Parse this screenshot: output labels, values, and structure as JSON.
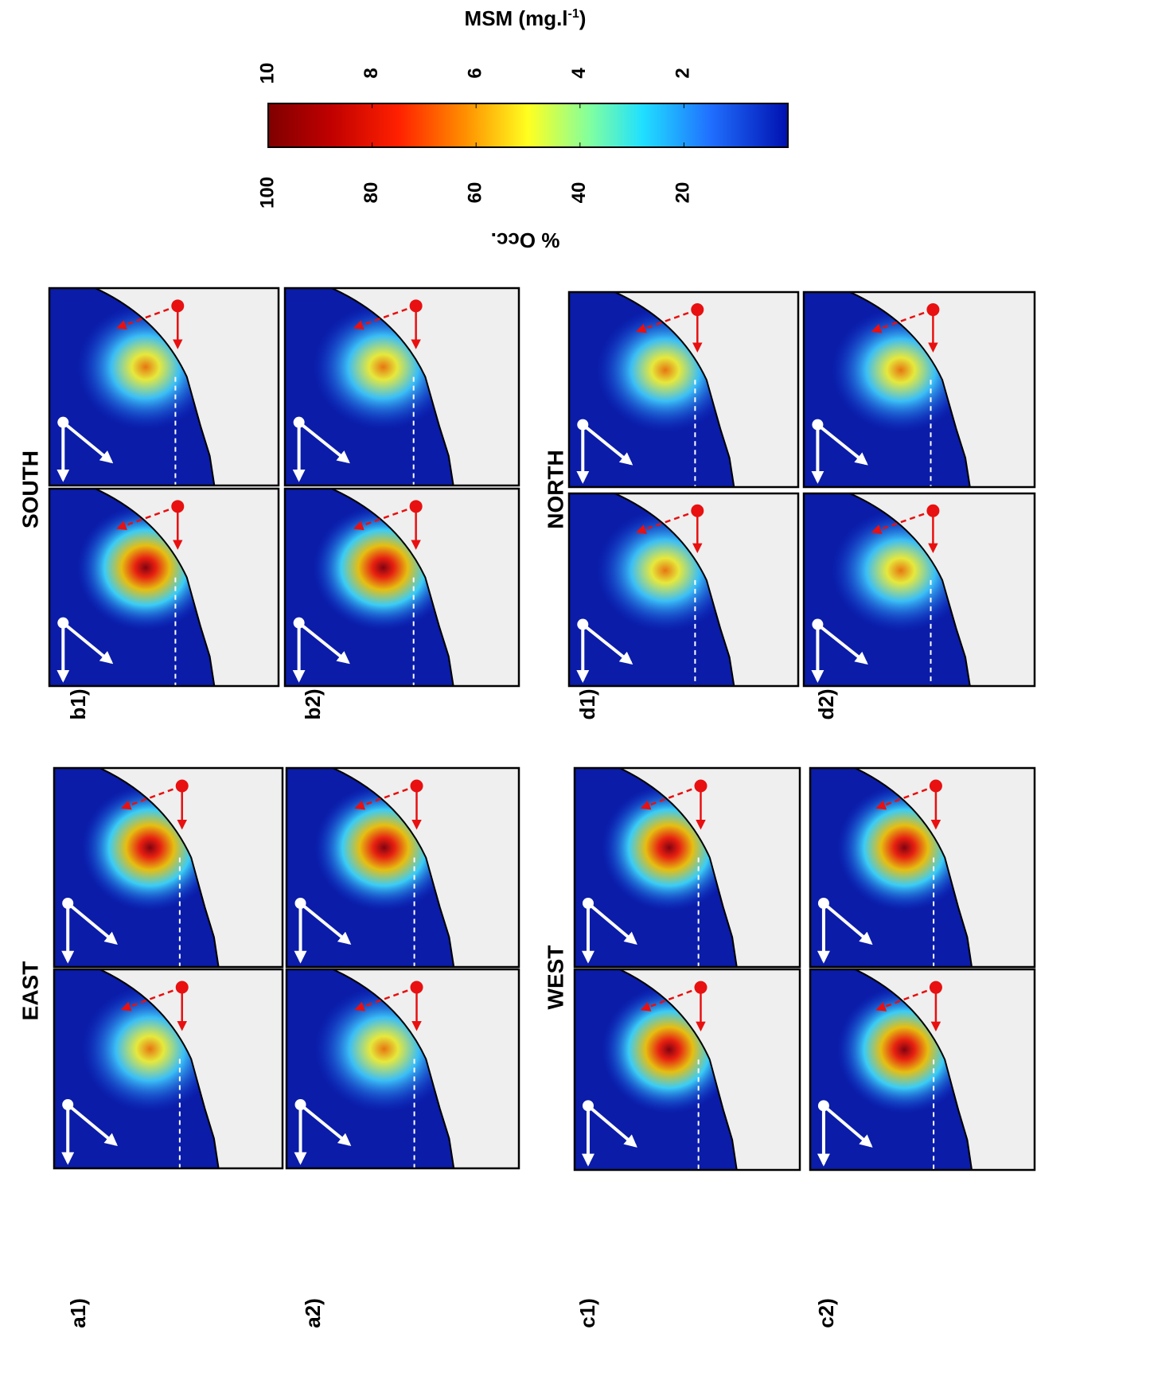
{
  "colorbar": {
    "title": "MSM (mg.l",
    "title_superscript": "-1",
    "title_close": ")",
    "msm_ticks": [
      10,
      8,
      6,
      4,
      2
    ],
    "msm_lim": [
      10,
      0
    ],
    "occ_label": "% Occ.",
    "occ_ticks": [
      100,
      80,
      60,
      40,
      20
    ],
    "occ_lim": [
      100,
      0
    ]
  },
  "groups": [
    {
      "heading": "EAST",
      "rows": [
        "a1)",
        "a2)"
      ]
    },
    {
      "heading": "SOUTH",
      "rows": [
        "b1)",
        "b2)"
      ]
    },
    {
      "heading": "WEST",
      "rows": [
        "c1)",
        "c2)"
      ]
    },
    {
      "heading": "NORTH",
      "rows": [
        "d1)",
        "d2)"
      ]
    }
  ]
}
